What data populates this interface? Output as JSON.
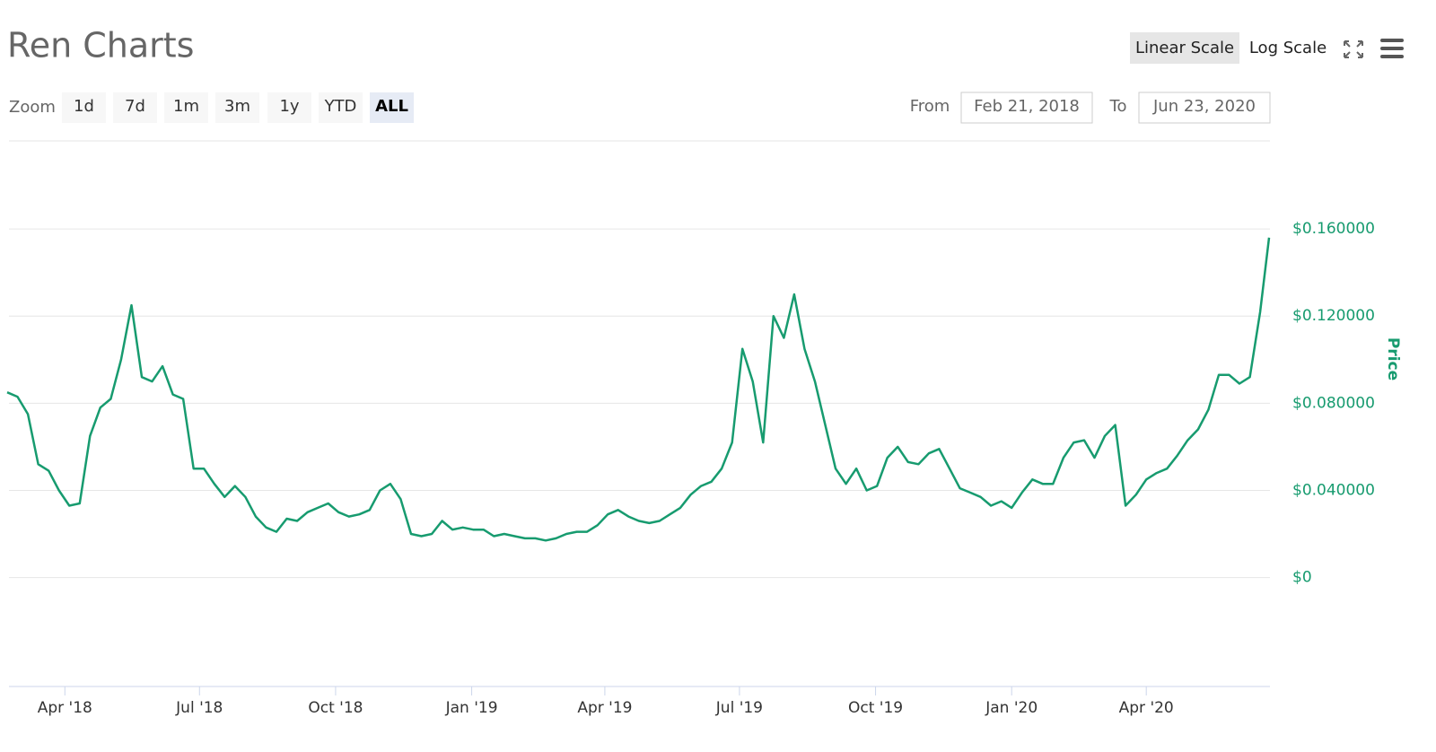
{
  "chart_data": {
    "type": "line",
    "title": "Ren Charts",
    "zoom_label": "Zoom",
    "zoom_buttons": [
      "1d",
      "7d",
      "1m",
      "3m",
      "1y",
      "YTD",
      "ALL"
    ],
    "zoom_selected": "ALL",
    "scale_buttons": [
      "Linear Scale",
      "Log Scale"
    ],
    "scale_selected": "Linear Scale",
    "range": {
      "from_label": "From",
      "from": "Feb 21, 2018",
      "to_label": "To",
      "to": "Jun 23, 2020"
    },
    "ylabel": "Price",
    "color": "#179b6f",
    "grid": true,
    "xlim": [
      "2018-02-21",
      "2020-06-23"
    ],
    "xticks": [
      {
        "value": "2018-04-01",
        "label": "Apr '18"
      },
      {
        "value": "2018-07-01",
        "label": "Jul '18"
      },
      {
        "value": "2018-10-01",
        "label": "Oct '18"
      },
      {
        "value": "2019-01-01",
        "label": "Jan '19"
      },
      {
        "value": "2019-04-01",
        "label": "Apr '19"
      },
      {
        "value": "2019-07-01",
        "label": "Jul '19"
      },
      {
        "value": "2019-10-01",
        "label": "Oct '19"
      },
      {
        "value": "2020-01-01",
        "label": "Jan '20"
      },
      {
        "value": "2020-04-01",
        "label": "Apr '20"
      }
    ],
    "ylim": [
      -0.05,
      0.2
    ],
    "yticks": [
      {
        "value": 0,
        "label": "$0"
      },
      {
        "value": 0.04,
        "label": "$0.040000"
      },
      {
        "value": 0.08,
        "label": "$0.080000"
      },
      {
        "value": 0.12,
        "label": "$0.120000"
      },
      {
        "value": 0.16,
        "label": "$0.160000"
      }
    ],
    "x": [
      "2018-02-21",
      "2018-02-28",
      "2018-03-07",
      "2018-03-14",
      "2018-03-21",
      "2018-03-28",
      "2018-04-04",
      "2018-04-11",
      "2018-04-18",
      "2018-04-25",
      "2018-05-02",
      "2018-05-09",
      "2018-05-16",
      "2018-05-23",
      "2018-05-30",
      "2018-06-06",
      "2018-06-13",
      "2018-06-20",
      "2018-06-27",
      "2018-07-04",
      "2018-07-11",
      "2018-07-18",
      "2018-07-25",
      "2018-08-01",
      "2018-08-08",
      "2018-08-15",
      "2018-08-22",
      "2018-08-29",
      "2018-09-05",
      "2018-09-12",
      "2018-09-19",
      "2018-09-26",
      "2018-10-03",
      "2018-10-10",
      "2018-10-17",
      "2018-10-24",
      "2018-10-31",
      "2018-11-07",
      "2018-11-14",
      "2018-11-21",
      "2018-11-28",
      "2018-12-05",
      "2018-12-12",
      "2018-12-19",
      "2018-12-26",
      "2019-01-02",
      "2019-01-09",
      "2019-01-16",
      "2019-01-23",
      "2019-01-30",
      "2019-02-06",
      "2019-02-13",
      "2019-02-20",
      "2019-02-27",
      "2019-03-06",
      "2019-03-13",
      "2019-03-20",
      "2019-03-27",
      "2019-04-03",
      "2019-04-10",
      "2019-04-17",
      "2019-04-24",
      "2019-05-01",
      "2019-05-08",
      "2019-05-15",
      "2019-05-22",
      "2019-05-29",
      "2019-06-05",
      "2019-06-12",
      "2019-06-19",
      "2019-06-26",
      "2019-07-03",
      "2019-07-10",
      "2019-07-17",
      "2019-07-24",
      "2019-07-31",
      "2019-08-07",
      "2019-08-14",
      "2019-08-21",
      "2019-08-28",
      "2019-09-04",
      "2019-09-11",
      "2019-09-18",
      "2019-09-25",
      "2019-10-02",
      "2019-10-09",
      "2019-10-16",
      "2019-10-23",
      "2019-10-30",
      "2019-11-06",
      "2019-11-13",
      "2019-11-20",
      "2019-11-27",
      "2019-12-04",
      "2019-12-11",
      "2019-12-18",
      "2019-12-25",
      "2020-01-01",
      "2020-01-08",
      "2020-01-15",
      "2020-01-22",
      "2020-01-29",
      "2020-02-05",
      "2020-02-12",
      "2020-02-19",
      "2020-02-26",
      "2020-03-04",
      "2020-03-11",
      "2020-03-18",
      "2020-03-25",
      "2020-04-01",
      "2020-04-08",
      "2020-04-15",
      "2020-04-22",
      "2020-04-29",
      "2020-05-06",
      "2020-05-13",
      "2020-05-20",
      "2020-05-27",
      "2020-06-03",
      "2020-06-10",
      "2020-06-17",
      "2020-06-23"
    ],
    "values": [
      0.085,
      0.083,
      0.075,
      0.052,
      0.049,
      0.04,
      0.033,
      0.034,
      0.065,
      0.078,
      0.082,
      0.1,
      0.125,
      0.092,
      0.09,
      0.097,
      0.084,
      0.082,
      0.05,
      0.05,
      0.043,
      0.037,
      0.042,
      0.037,
      0.028,
      0.023,
      0.021,
      0.027,
      0.026,
      0.03,
      0.032,
      0.034,
      0.03,
      0.028,
      0.029,
      0.031,
      0.04,
      0.043,
      0.036,
      0.02,
      0.019,
      0.02,
      0.026,
      0.022,
      0.023,
      0.022,
      0.022,
      0.019,
      0.02,
      0.019,
      0.018,
      0.018,
      0.017,
      0.018,
      0.02,
      0.021,
      0.021,
      0.024,
      0.029,
      0.031,
      0.028,
      0.026,
      0.025,
      0.026,
      0.029,
      0.032,
      0.038,
      0.042,
      0.044,
      0.05,
      0.062,
      0.105,
      0.09,
      0.062,
      0.12,
      0.11,
      0.13,
      0.105,
      0.09,
      0.07,
      0.05,
      0.043,
      0.05,
      0.04,
      0.042,
      0.055,
      0.06,
      0.053,
      0.052,
      0.057,
      0.059,
      0.05,
      0.041,
      0.039,
      0.037,
      0.033,
      0.035,
      0.032,
      0.039,
      0.045,
      0.043,
      0.043,
      0.055,
      0.062,
      0.063,
      0.055,
      0.065,
      0.07,
      0.033,
      0.038,
      0.045,
      0.048,
      0.05,
      0.056,
      0.063,
      0.068,
      0.077,
      0.093,
      0.093,
      0.089,
      0.092,
      0.122,
      0.156
    ]
  }
}
